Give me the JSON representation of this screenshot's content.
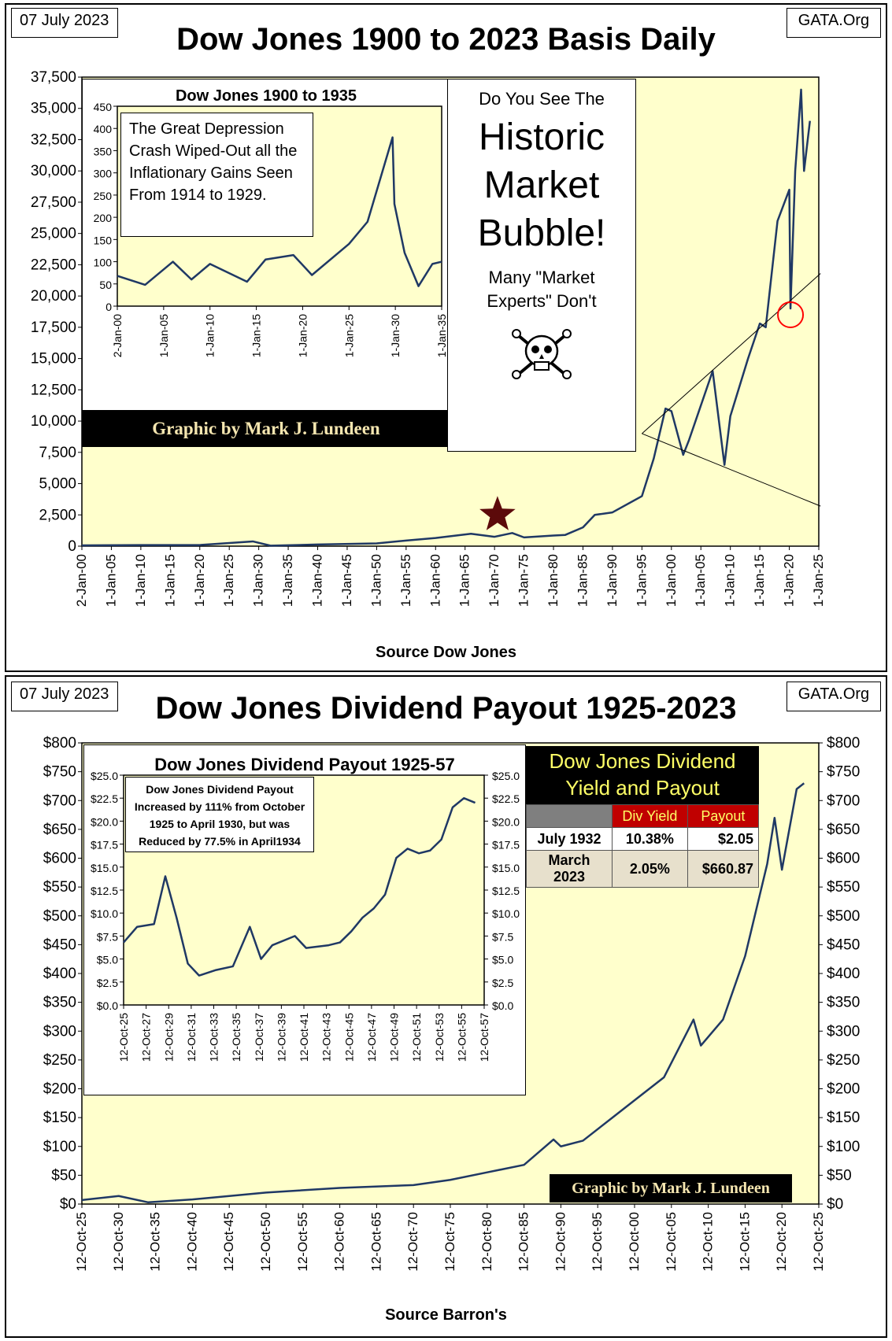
{
  "colors": {
    "plot_bg": "#ffffcc",
    "line": "#1f3864",
    "grid": "#000000",
    "credit_bg": "#000000",
    "credit_text": "#f5e6b0",
    "star": "#5c0a0a",
    "circle": "#ff0000",
    "table_header_bg": "#c00000",
    "table_header_text": "#ffff66"
  },
  "top": {
    "date": "07 July 2023",
    "source": "GATA.Org",
    "title": "Dow Jones 1900 to 2023 Basis Daily",
    "x_axis_title": "Source Dow Jones",
    "credit": "Graphic by Mark J. Lundeen",
    "bubble": {
      "line1": "Do You See The",
      "line2": "Historic",
      "line3": "Market",
      "line4": "Bubble!",
      "line5": "Many \"Market",
      "line6": "Experts\"  Don't",
      "icon": "skull-crossbones-icon"
    },
    "inset": {
      "title": "Dow Jones 1900 to 1935",
      "note": "The Great Depression Crash Wiped-Out all the Inflationary Gains Seen From 1914 to 1929."
    }
  },
  "bottom": {
    "date": "07 July 2023",
    "source": "GATA.Org",
    "title": "Dow Jones Dividend Payout 1925-2023",
    "x_axis_title": "Source Barron's",
    "credit": "Graphic by Mark J. Lundeen",
    "inset": {
      "title": "Dow Jones Dividend Payout 1925-57",
      "note": "Dow Jones Dividend Payout Increased by  111% from October 1925 to April 1930, but was Reduced by 77.5% in April1934"
    },
    "table": {
      "title_line1": "Dow Jones Dividend",
      "title_line2": "Yield and Payout",
      "header_yield": "Div Yield",
      "header_payout": "Payout",
      "rows": [
        {
          "date": "July 1932",
          "yield": "10.38%",
          "payout": "$2.05"
        },
        {
          "date": "March 2023",
          "yield": "2.05%",
          "payout": "$660.87"
        }
      ]
    }
  },
  "chart_data": [
    {
      "type": "line",
      "title": "Dow Jones 1900 to 2023 Basis Daily",
      "xlabel": "Source Dow Jones",
      "ylabel": "",
      "ylim": [
        0,
        37500
      ],
      "y_ticks": [
        "0",
        "2,500",
        "5,000",
        "7,500",
        "10,000",
        "12,500",
        "15,000",
        "17,500",
        "20,000",
        "22,500",
        "25,000",
        "27,500",
        "30,000",
        "32,500",
        "35,000",
        "37,500"
      ],
      "x_ticks": [
        "2-Jan-00",
        "1-Jan-05",
        "1-Jan-10",
        "1-Jan-15",
        "1-Jan-20",
        "1-Jan-25",
        "1-Jan-30",
        "1-Jan-35",
        "1-Jan-40",
        "1-Jan-45",
        "1-Jan-50",
        "1-Jan-55",
        "1-Jan-60",
        "1-Jan-65",
        "1-Jan-70",
        "1-Jan-75",
        "1-Jan-80",
        "1-Jan-85",
        "1-Jan-90",
        "1-Jan-95",
        "1-Jan-00",
        "1-Jan-05",
        "1-Jan-10",
        "1-Jan-15",
        "1-Jan-20",
        "1-Jan-25"
      ],
      "x": [
        1900,
        1910,
        1920,
        1929,
        1932,
        1940,
        1950,
        1955,
        1960,
        1966,
        1970,
        1973,
        1975,
        1980,
        1982,
        1985,
        1987,
        1990,
        1995,
        1997,
        1999,
        2000,
        2002,
        2003,
        2007,
        2009,
        2010,
        2013,
        2015,
        2016,
        2018,
        2020.0,
        2020.2,
        2021,
        2022.0,
        2022.5,
        2023.5
      ],
      "y": [
        60,
        90,
        90,
        380,
        40,
        130,
        220,
        450,
        650,
        990,
        750,
        1050,
        700,
        850,
        900,
        1500,
        2500,
        2700,
        4000,
        7000,
        11000,
        10800,
        7300,
        8500,
        14000,
        6500,
        10400,
        15000,
        17800,
        17500,
        26000,
        28500,
        19000,
        30000,
        36500,
        30000,
        34000
      ],
      "annotations": [
        "star at 1970",
        "circle at 2020",
        "trend lines"
      ]
    },
    {
      "type": "line",
      "title": "Dow Jones 1900 to 1935",
      "ylim": [
        0,
        450
      ],
      "y_ticks": [
        "0",
        "50",
        "100",
        "150",
        "200",
        "250",
        "300",
        "350",
        "400",
        "450"
      ],
      "x_ticks": [
        "2-Jan-00",
        "1-Jan-05",
        "1-Jan-10",
        "1-Jan-15",
        "1-Jan-20",
        "1-Jan-25",
        "1-Jan-30",
        "1-Jan-35"
      ],
      "x": [
        1900,
        1903,
        1906,
        1908,
        1910,
        1914,
        1916,
        1919,
        1921,
        1925,
        1927,
        1929.7,
        1929.9,
        1931,
        1932.5,
        1934,
        1935
      ],
      "y": [
        68,
        48,
        100,
        60,
        95,
        55,
        105,
        115,
        70,
        140,
        190,
        380,
        230,
        120,
        45,
        95,
        100
      ]
    },
    {
      "type": "line",
      "title": "Dow Jones Dividend Payout 1925-2023",
      "xlabel": "Source Barron's",
      "ylim": [
        0,
        800
      ],
      "y_ticks": [
        "$0",
        "$50",
        "$100",
        "$150",
        "$200",
        "$250",
        "$300",
        "$350",
        "$400",
        "$450",
        "$500",
        "$550",
        "$600",
        "$650",
        "$700",
        "$750",
        "$800"
      ],
      "x_ticks": [
        "12-Oct-25",
        "12-Oct-30",
        "12-Oct-35",
        "12-Oct-40",
        "12-Oct-45",
        "12-Oct-50",
        "12-Oct-55",
        "12-Oct-60",
        "12-Oct-65",
        "12-Oct-70",
        "12-Oct-75",
        "12-Oct-80",
        "12-Oct-85",
        "12-Oct-90",
        "12-Oct-95",
        "12-Oct-00",
        "12-Oct-05",
        "12-Oct-10",
        "12-Oct-15",
        "12-Oct-20",
        "12-Oct-25"
      ],
      "x": [
        1925,
        1930,
        1934,
        1940,
        1950,
        1960,
        1970,
        1975,
        1980,
        1985,
        1989,
        1990,
        1993,
        1997,
        2000,
        2004,
        2008,
        2009,
        2012,
        2015,
        2018,
        2019,
        2020,
        2022,
        2023
      ],
      "y": [
        7,
        14,
        3,
        8,
        20,
        28,
        33,
        42,
        55,
        68,
        112,
        100,
        110,
        150,
        180,
        220,
        320,
        275,
        320,
        430,
        590,
        670,
        580,
        720,
        730
      ]
    },
    {
      "type": "line",
      "title": "Dow Jones Dividend Payout 1925-57",
      "ylim": [
        0,
        25
      ],
      "y_ticks": [
        "$0.0",
        "$2.5",
        "$5.0",
        "$7.5",
        "$10.0",
        "$12.5",
        "$15.0",
        "$17.5",
        "$20.0",
        "$22.5",
        "$25.0"
      ],
      "x_ticks": [
        "12-Oct-25",
        "12-Oct-27",
        "12-Oct-29",
        "12-Oct-31",
        "12-Oct-33",
        "12-Oct-35",
        "12-Oct-37",
        "12-Oct-39",
        "12-Oct-41",
        "12-Oct-43",
        "12-Oct-45",
        "12-Oct-47",
        "12-Oct-49",
        "12-Oct-51",
        "12-Oct-53",
        "12-Oct-55",
        "12-Oct-57"
      ],
      "x": [
        1925.8,
        1927,
        1928.5,
        1929.5,
        1930.5,
        1931.5,
        1932.5,
        1934,
        1935.5,
        1937,
        1938,
        1939,
        1941,
        1942,
        1944,
        1945,
        1946,
        1947,
        1948,
        1949,
        1950,
        1951,
        1952,
        1953,
        1954,
        1955,
        1956,
        1957
      ],
      "y": [
        6.8,
        8.5,
        8.8,
        14.0,
        9.5,
        4.5,
        3.2,
        3.8,
        4.2,
        8.5,
        5.0,
        6.5,
        7.5,
        6.2,
        6.5,
        6.8,
        8.0,
        9.5,
        10.5,
        12.0,
        16.0,
        17.0,
        16.5,
        16.8,
        18.0,
        21.5,
        22.5,
        22.0
      ]
    }
  ]
}
